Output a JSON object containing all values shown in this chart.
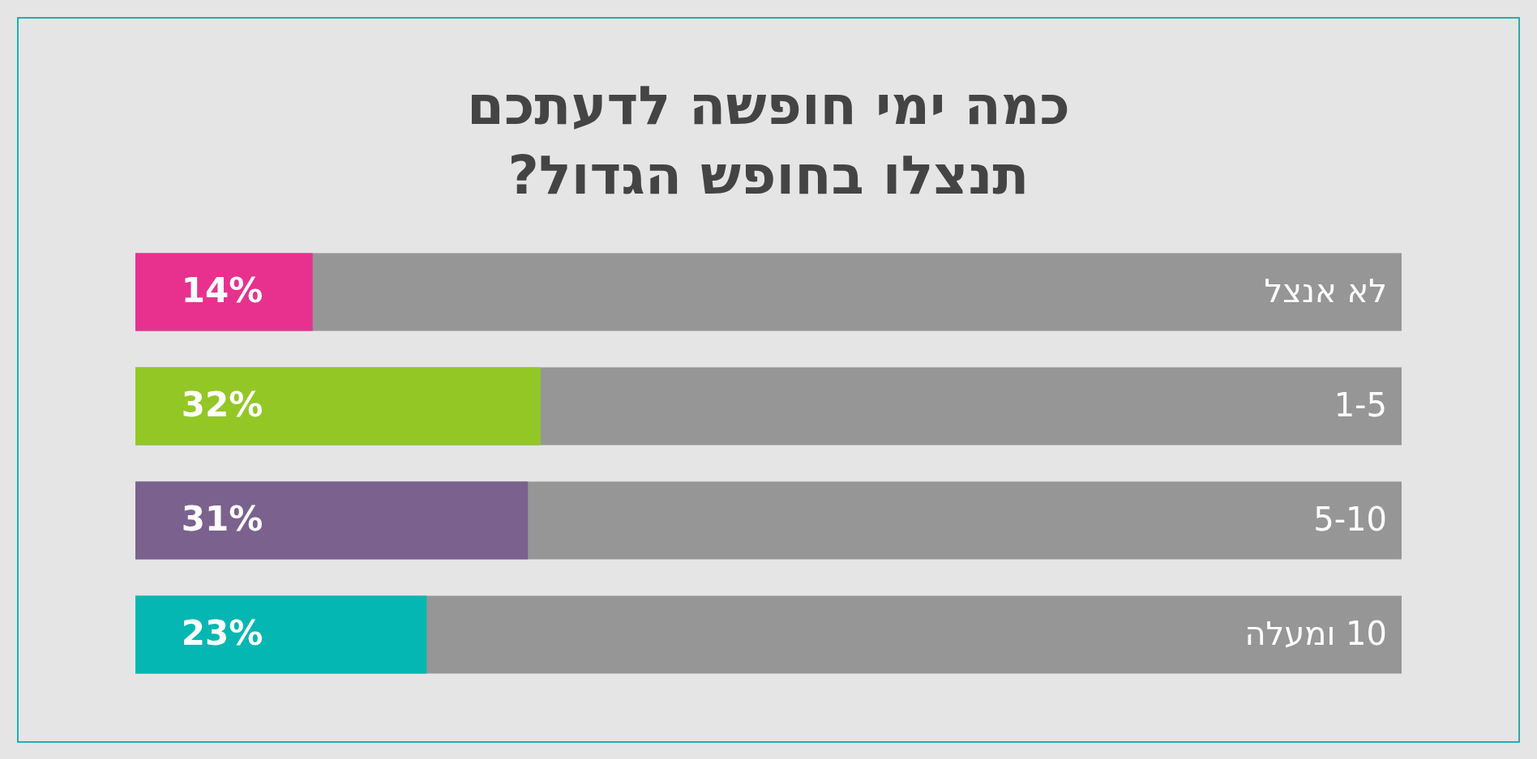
{
  "chart_data": {
    "type": "bar",
    "orientation": "horizontal",
    "title": "כמה ימי חופשה לדעתכם\nתנצלו בחופש הגדול?",
    "categories": [
      "לא אנצל",
      "1-5",
      "5-10",
      "10 ומעלה"
    ],
    "values": [
      14,
      32,
      31,
      23
    ],
    "colors": [
      "#e8318f",
      "#93c726",
      "#7b618e",
      "#05b7b2"
    ],
    "value_labels": [
      "14%",
      "32%",
      "31%",
      "23%"
    ],
    "xlim": [
      0,
      100
    ],
    "legend": false
  }
}
